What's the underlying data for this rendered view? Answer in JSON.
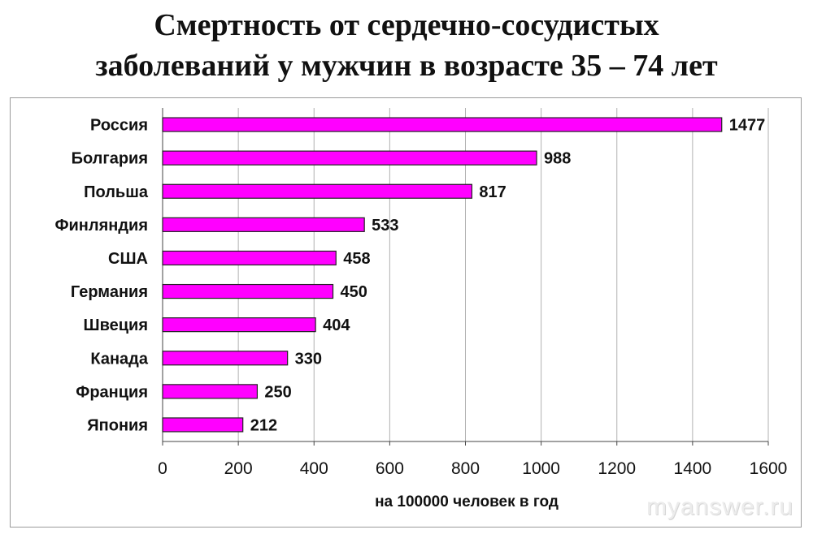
{
  "title_line1": "Смертность от сердечно-сосудистых",
  "title_line2": "заболеваний у мужчин в возрасте 35 – 74 лет",
  "watermark": "myanswer.ru",
  "chart_data": {
    "type": "bar",
    "orientation": "horizontal",
    "categories": [
      "Россия",
      "Болгария",
      "Польша",
      "Финляндия",
      "США",
      "Германия",
      "Швеция",
      "Канада",
      "Франция",
      "Япония"
    ],
    "values": [
      1477,
      988,
      817,
      533,
      458,
      450,
      404,
      330,
      250,
      212
    ],
    "xlabel": "на 100000 человек в год",
    "xlim": [
      0,
      1600
    ],
    "xticks": [
      0,
      200,
      400,
      600,
      800,
      1000,
      1200,
      1400,
      1600
    ],
    "grid": true,
    "bar_color": "#ff00ff",
    "bar_edge_color": "#222222",
    "data_labels": true
  }
}
